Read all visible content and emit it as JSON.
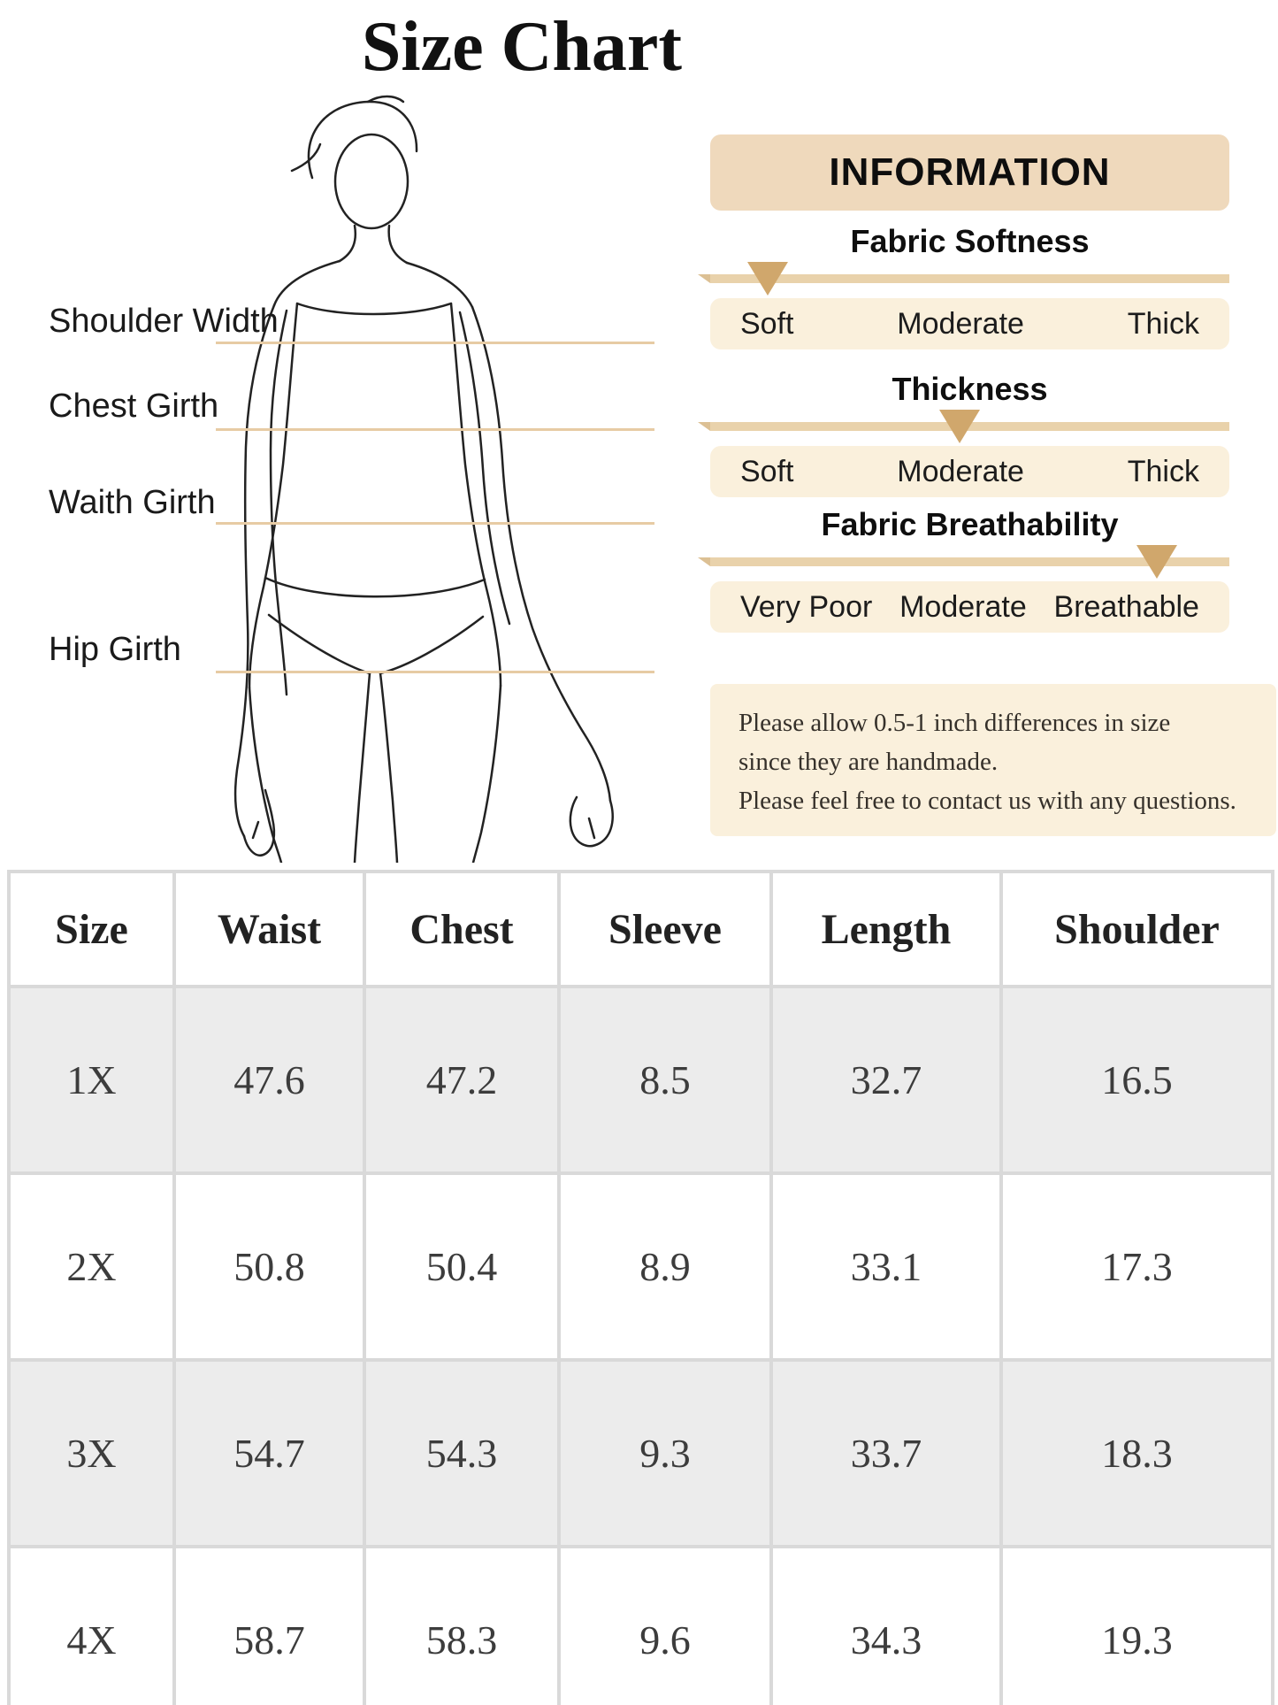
{
  "page_title": "Size Chart",
  "measurement_labels": [
    "Shoulder Width",
    "Chest Girth",
    "Waith Girth",
    "Hip Girth"
  ],
  "info": {
    "header": "INFORMATION",
    "sliders": [
      {
        "title": "Fabric Softness",
        "levels": [
          "Soft",
          "Moderate",
          "Thick"
        ],
        "pointer_percent": 11
      },
      {
        "title": "Thickness",
        "levels": [
          "Soft",
          "Moderate",
          "Thick"
        ],
        "pointer_percent": 48
      },
      {
        "title": "Fabric Breathability",
        "levels": [
          "Very Poor",
          "Moderate",
          "Breathable"
        ],
        "pointer_percent": 86
      }
    ],
    "note_lines": [
      "Please allow 0.5-1 inch differences in size",
      "since they are handmade.",
      "Please feel free to contact us with any questions."
    ]
  },
  "size_table": {
    "columns": [
      "Size",
      "Waist",
      "Chest",
      "Sleeve",
      "Length",
      "Shoulder"
    ],
    "rows": [
      [
        "1X",
        "47.6",
        "47.2",
        "8.5",
        "32.7",
        "16.5"
      ],
      [
        "2X",
        "50.8",
        "50.4",
        "8.9",
        "33.1",
        "17.3"
      ],
      [
        "3X",
        "54.7",
        "54.3",
        "9.3",
        "33.7",
        "18.3"
      ],
      [
        "4X",
        "58.7",
        "58.3",
        "9.6",
        "34.3",
        "19.3"
      ]
    ]
  },
  "colors": {
    "info_header_bg": "#efd9bc",
    "panel_bg": "#faf0dc",
    "track_bg": "#e9d2ab",
    "pointer": "#d0a76c",
    "measure_line": "#e7cba4",
    "table_stripe": "#ececec",
    "table_border": "#d9d9d9"
  }
}
